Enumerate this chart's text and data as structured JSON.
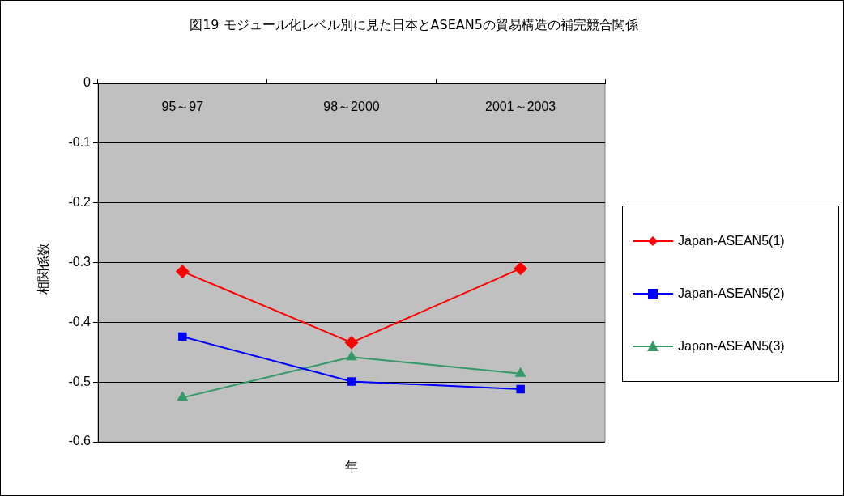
{
  "chart_data": {
    "type": "line",
    "title": "図19 モジュール化レベル別に見た日本とASEAN5の貿易構造の補完競合関係",
    "xlabel": "年",
    "ylabel": "相関係数",
    "categories": [
      "95～97",
      "98～2000",
      "2001～2003"
    ],
    "series": [
      {
        "name": "Japan-ASEAN5(1)",
        "color": "#ff0000",
        "marker": "diamond",
        "values": [
          -0.315,
          -0.434,
          -0.31
        ]
      },
      {
        "name": "Japan-ASEAN5(2)",
        "color": "#0000ff",
        "marker": "square",
        "values": [
          -0.424,
          -0.499,
          -0.512
        ]
      },
      {
        "name": "Japan-ASEAN5(3)",
        "color": "#339966",
        "marker": "triangle",
        "values": [
          -0.526,
          -0.458,
          -0.486
        ]
      }
    ],
    "ylim": [
      -0.6,
      0
    ],
    "yticks": [
      0,
      -0.1,
      -0.2,
      -0.3,
      -0.4,
      -0.5,
      -0.6
    ],
    "grid": "y",
    "legend": "right"
  }
}
